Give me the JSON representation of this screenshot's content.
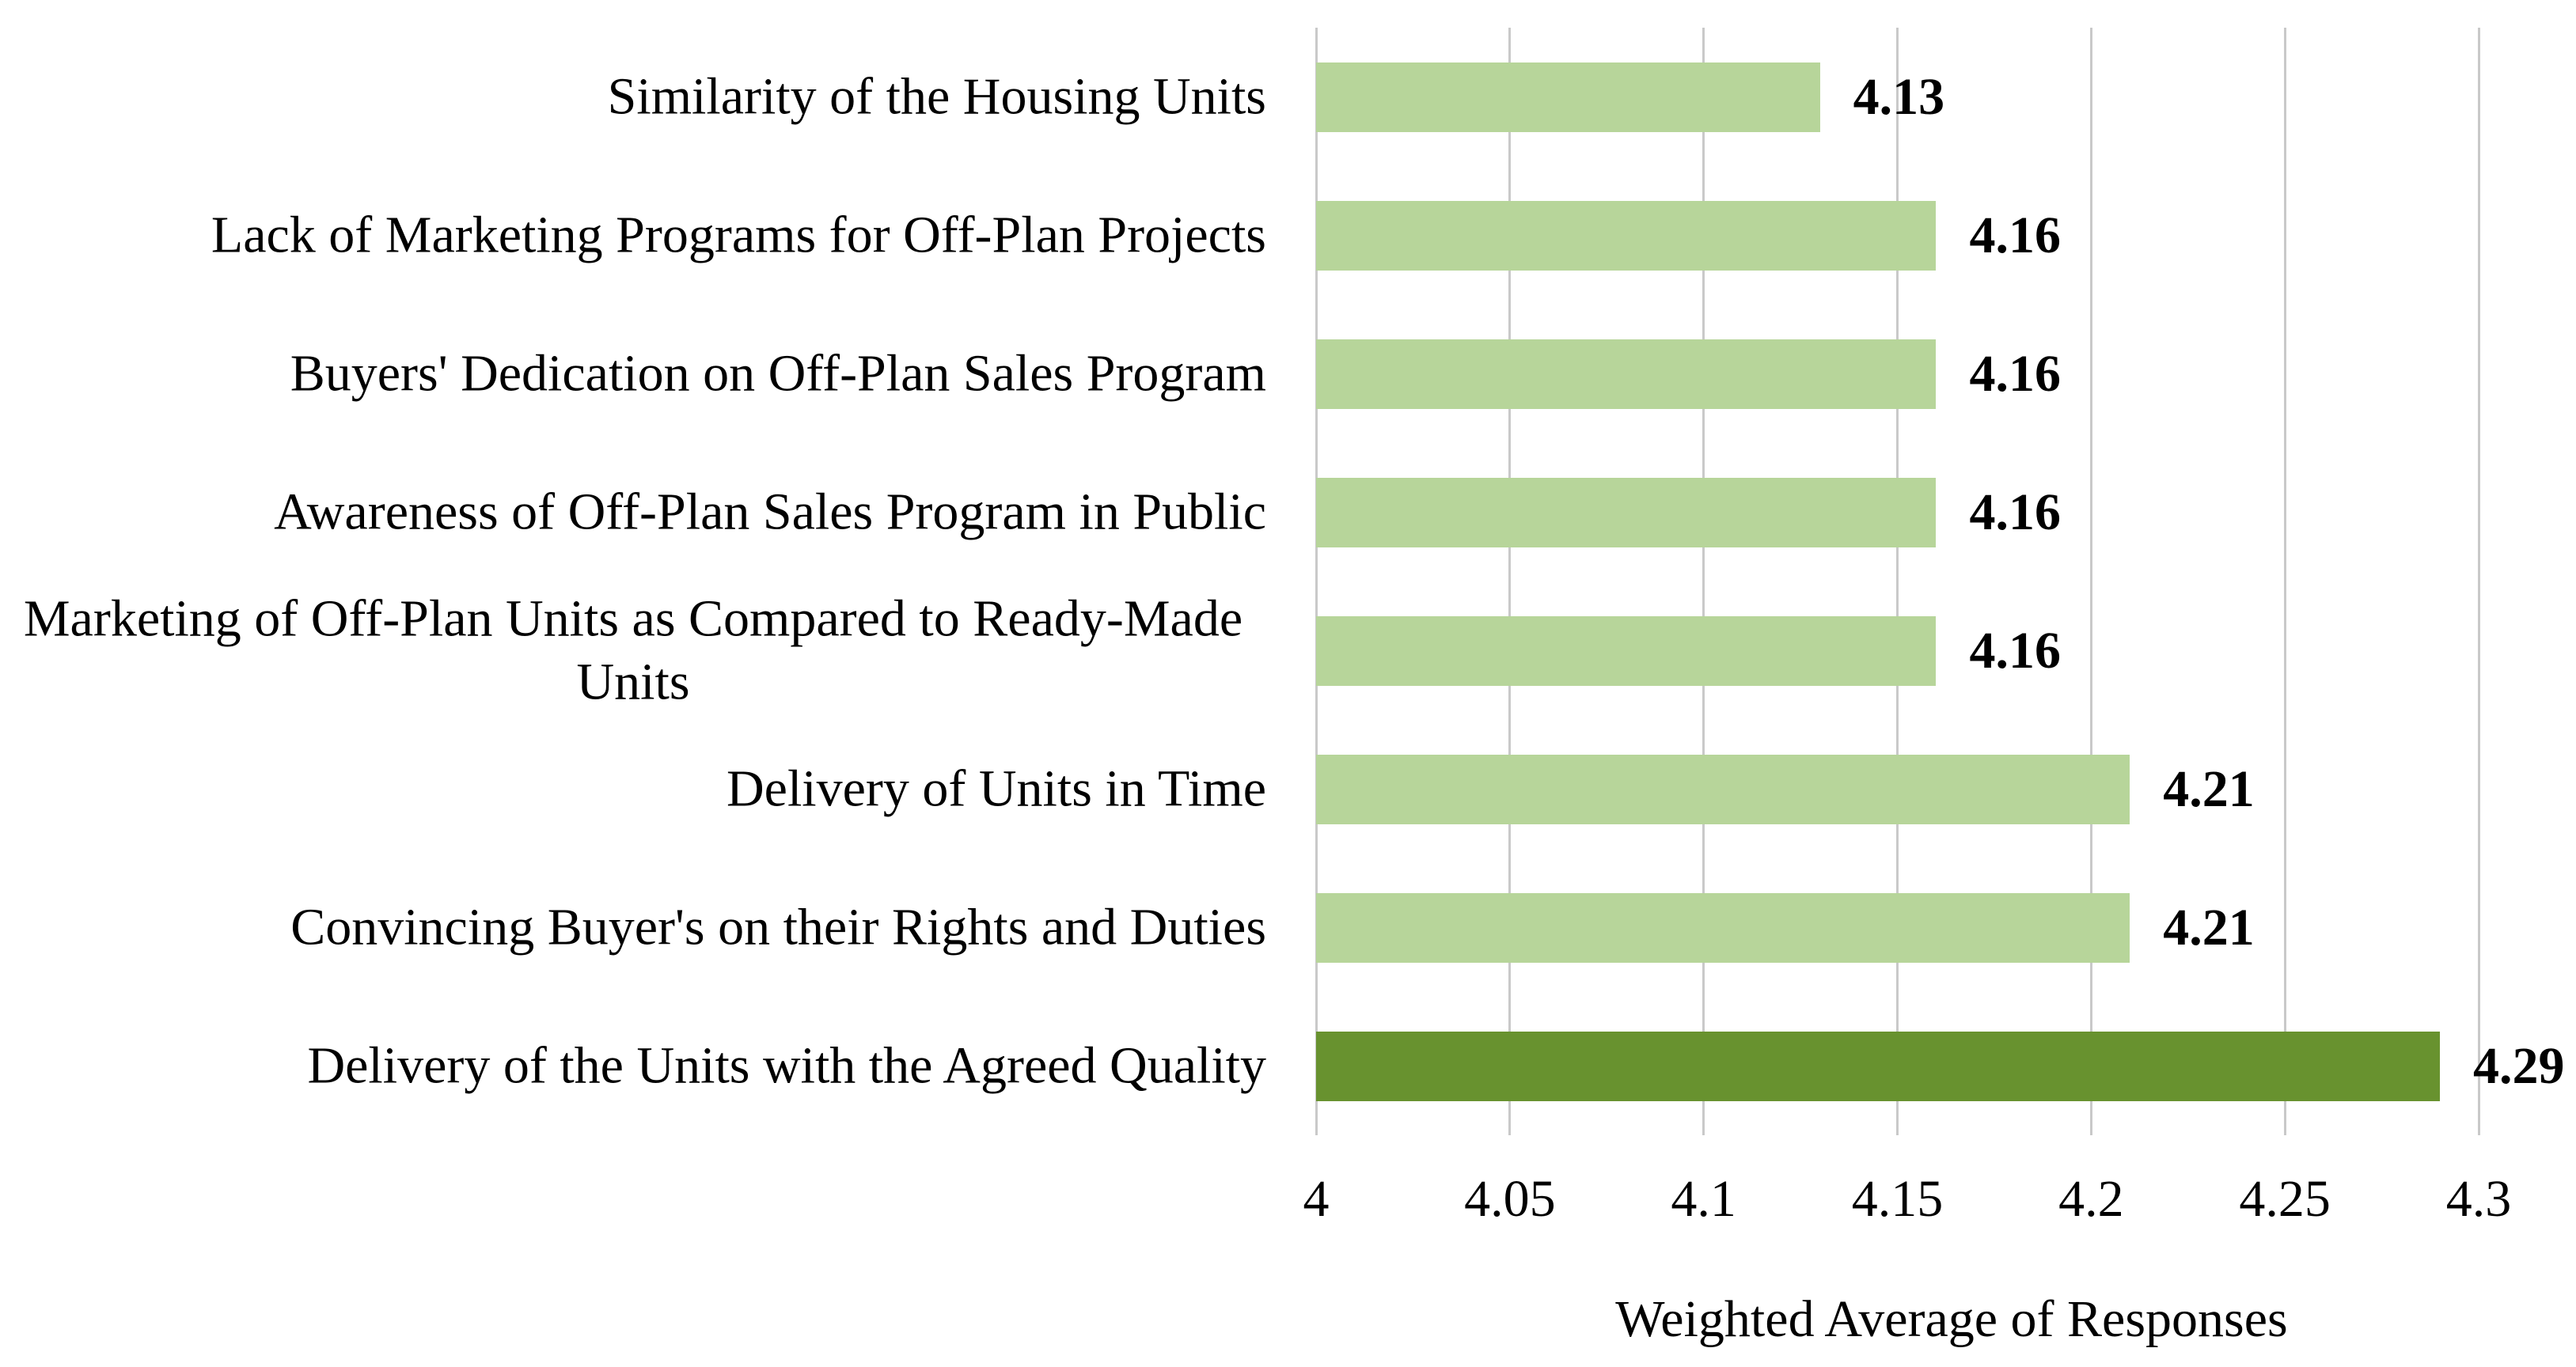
{
  "chart_data": {
    "type": "bar",
    "orientation": "horizontal",
    "title": "",
    "categories": [
      "Similarity of the Housing Units",
      "Lack of Marketing Programs for Off-Plan Projects",
      "Buyers' Dedication on Off-Plan Sales Program",
      "Awareness of Off-Plan Sales Program in Public",
      "Marketing of Off-Plan Units as Compared to Ready-Made Units",
      "Delivery of Units in Time",
      "Convincing Buyer's on their Rights and Duties",
      "Delivery of the Units with the Agreed Quality"
    ],
    "values": [
      4.13,
      4.16,
      4.16,
      4.16,
      4.16,
      4.21,
      4.21,
      4.29
    ],
    "value_labels": [
      "4.13",
      "4.16",
      "4.16",
      "4.16",
      "4.16",
      "4.21",
      "4.21",
      "4.29"
    ],
    "highlight_index": 7,
    "xlabel": "Weighted Average of Responses",
    "xlim": [
      4,
      4.3
    ],
    "xticks": [
      4,
      4.05,
      4.1,
      4.15,
      4.2,
      4.25,
      4.3
    ],
    "xtick_labels": [
      "4",
      "4.05",
      "4.1",
      "4.15",
      "4.2",
      "4.25",
      "4.3"
    ],
    "grid": true,
    "legend": false,
    "colors": {
      "bar_default": "#b7d59a",
      "bar_highlight": "#68922f",
      "gridline": "#c9c9c9",
      "text": "#000000",
      "background": "#ffffff"
    }
  }
}
